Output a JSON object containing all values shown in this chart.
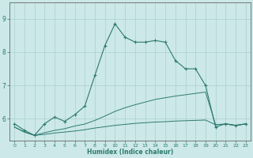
{
  "xlabel": "Humidex (Indice chaleur)",
  "bg_color": "#cce8e8",
  "grid_color": "#aad0d0",
  "line_color": "#2d7a70",
  "xlim": [
    -0.5,
    23.5
  ],
  "ylim": [
    5.35,
    9.5
  ],
  "yticks": [
    6,
    7,
    8,
    9
  ],
  "xticks": [
    0,
    1,
    2,
    3,
    4,
    5,
    6,
    7,
    8,
    9,
    10,
    11,
    12,
    13,
    14,
    15,
    16,
    17,
    18,
    19,
    20,
    21,
    22,
    23
  ],
  "line1_x": [
    0,
    1,
    2,
    3,
    4,
    5,
    6,
    7,
    8,
    9,
    10,
    11,
    12,
    13,
    14,
    15,
    16,
    17,
    18,
    19,
    20,
    21,
    22,
    23
  ],
  "line1_y": [
    5.85,
    5.65,
    5.5,
    5.85,
    6.05,
    5.92,
    6.12,
    6.38,
    7.3,
    8.2,
    8.85,
    8.45,
    8.3,
    8.3,
    8.35,
    8.3,
    7.75,
    7.5,
    7.5,
    7.0,
    5.75,
    5.85,
    5.8,
    5.85
  ],
  "line2_x": [
    0,
    1,
    2,
    3,
    4,
    5,
    6,
    7,
    8,
    9,
    10,
    11,
    12,
    13,
    14,
    15,
    16,
    17,
    18,
    19,
    20,
    21,
    22,
    23
  ],
  "line2_y": [
    5.75,
    5.6,
    5.5,
    5.58,
    5.65,
    5.7,
    5.78,
    5.84,
    5.95,
    6.08,
    6.22,
    6.33,
    6.42,
    6.5,
    6.58,
    6.63,
    6.68,
    6.72,
    6.76,
    6.8,
    5.82,
    5.84,
    5.8,
    5.84
  ],
  "line3_x": [
    0,
    1,
    2,
    3,
    4,
    5,
    6,
    7,
    8,
    9,
    10,
    11,
    12,
    13,
    14,
    15,
    16,
    17,
    18,
    19,
    20,
    21,
    22,
    23
  ],
  "line3_y": [
    5.75,
    5.6,
    5.5,
    5.53,
    5.57,
    5.6,
    5.63,
    5.67,
    5.72,
    5.76,
    5.8,
    5.83,
    5.86,
    5.88,
    5.9,
    5.91,
    5.93,
    5.94,
    5.95,
    5.96,
    5.82,
    5.84,
    5.8,
    5.84
  ]
}
